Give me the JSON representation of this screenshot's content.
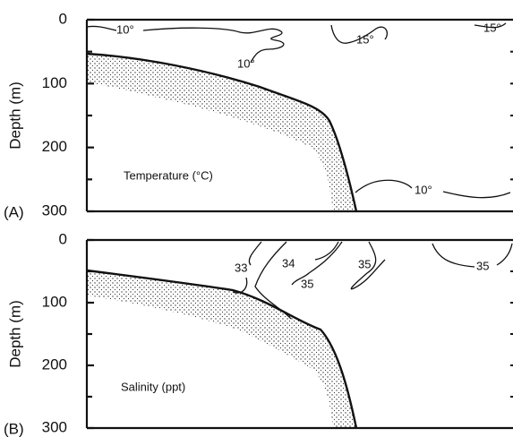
{
  "panels": [
    {
      "label": "(A)",
      "title": "Temperature (°C)",
      "y_label": "Depth (m)",
      "ylim": [
        0,
        300
      ],
      "yticks": [
        0,
        100,
        200,
        300
      ],
      "minor_ticks": [
        50,
        150,
        250
      ],
      "contour_labels": [
        "10°",
        "10°",
        "15°",
        "15°",
        "10°"
      ]
    },
    {
      "label": "(B)",
      "title": "Salinity (ppt)",
      "y_label": "Depth (m)",
      "ylim": [
        0,
        300
      ],
      "yticks": [
        0,
        100,
        200,
        300
      ],
      "minor_ticks": [
        50,
        150,
        250
      ],
      "contour_labels": [
        "33",
        "34",
        "35",
        "35",
        "35"
      ]
    }
  ]
}
